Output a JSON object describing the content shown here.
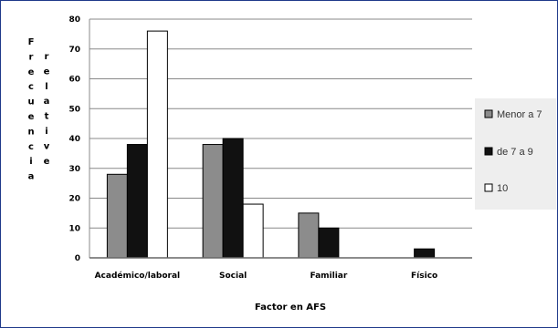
{
  "chart_data": {
    "type": "bar",
    "title": "",
    "xlabel": "Factor en AFS",
    "ylabel": "Frecuencia relative",
    "ylabel_col1": "Frecuencia",
    "ylabel_col2": "relative",
    "categories": [
      "Académico/laboral",
      "Social",
      "Familiar",
      "Físico"
    ],
    "series": [
      {
        "name": "Menor a 7",
        "values": [
          28,
          38,
          15,
          0
        ],
        "color": "#8c8c8c"
      },
      {
        "name": "de 7 a 9",
        "values": [
          38,
          40,
          10,
          3
        ],
        "color": "#111111"
      },
      {
        "name": "10",
        "values": [
          76,
          18,
          0,
          0
        ],
        "color": "#ffffff"
      }
    ],
    "ylim": [
      0,
      80
    ],
    "yticks": [
      0,
      10,
      20,
      30,
      40,
      50,
      60,
      70,
      80
    ],
    "grid": true,
    "legend": "right"
  }
}
